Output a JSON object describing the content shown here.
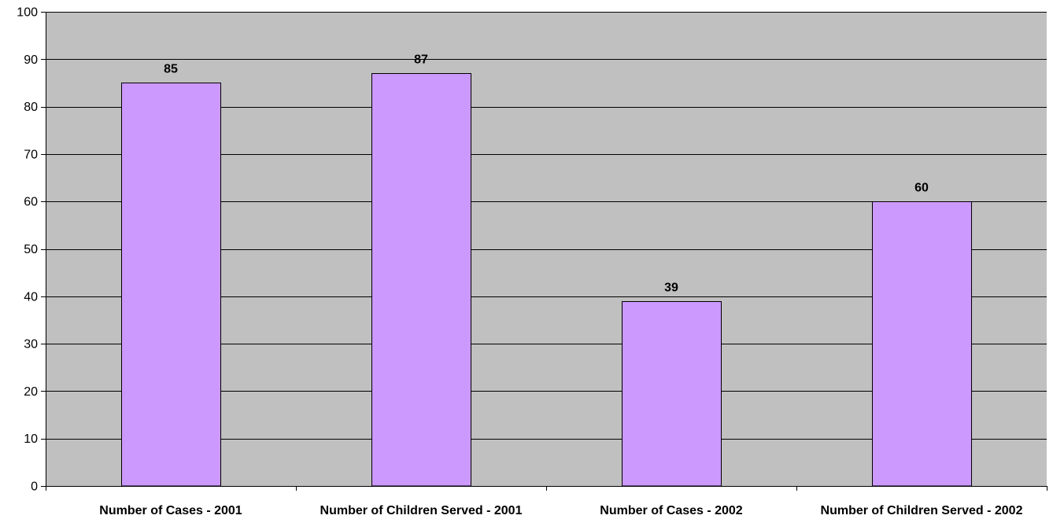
{
  "chart_data": {
    "type": "bar",
    "title": "",
    "xlabel": "",
    "ylabel": "",
    "categories": [
      "Number of Cases - 2001",
      "Number of Children Served - 2001",
      "Number of Cases - 2002",
      "Number of Children Served - 2002"
    ],
    "values": [
      85,
      87,
      39,
      60
    ],
    "ylim": [
      0,
      100
    ],
    "yticks": [
      0,
      10,
      20,
      30,
      40,
      50,
      60,
      70,
      80,
      90,
      100
    ],
    "grid": true,
    "legend": "none",
    "data_labels": true,
    "colors": {
      "bar_fill": "#CC99FF",
      "plot_background": "#C0C0C0",
      "gridline": "#000000",
      "axis": "#000000"
    }
  }
}
